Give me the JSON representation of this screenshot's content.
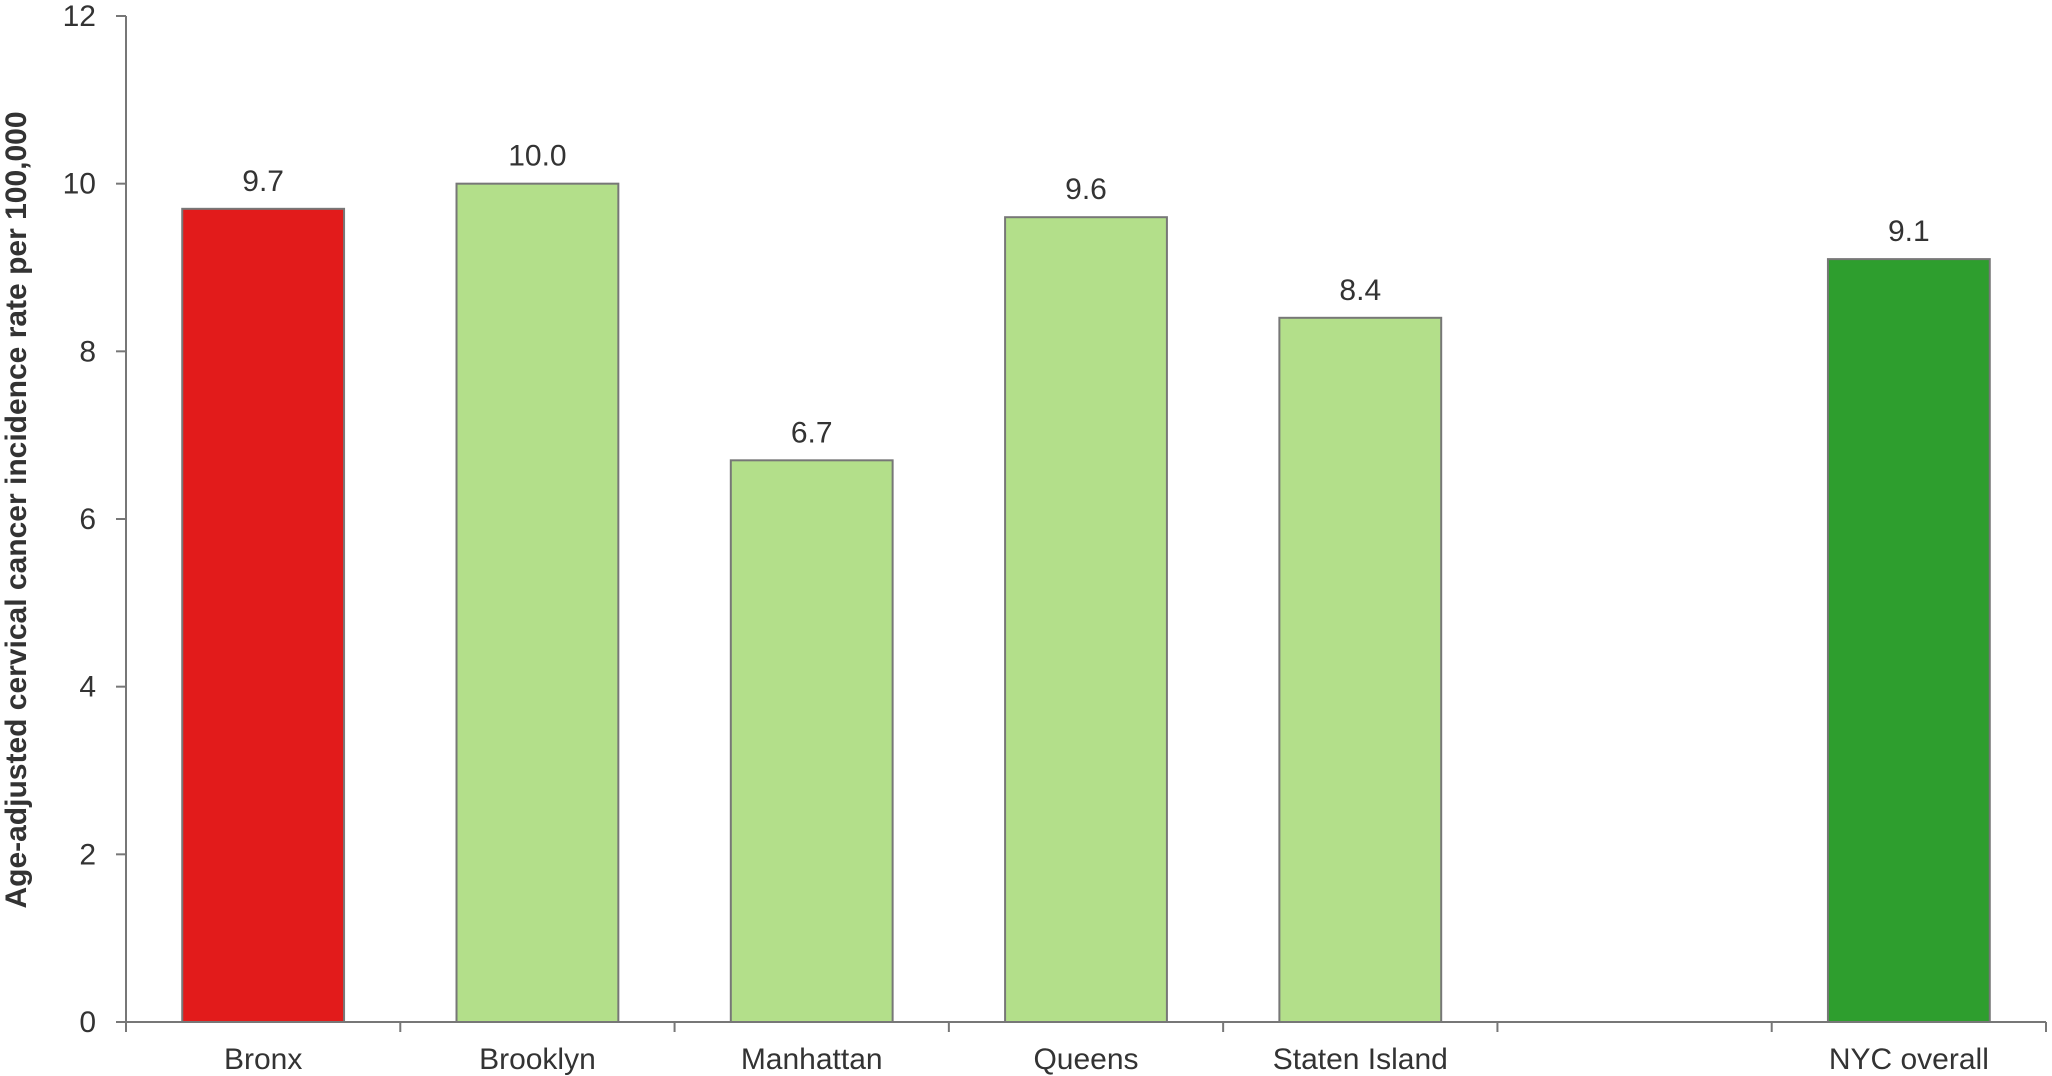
{
  "chart_data": {
    "type": "bar",
    "title": "",
    "xlabel": "",
    "ylabel": "Age-adjusted cervical cancer incidence rate per 100,000",
    "ylim": [
      0,
      12
    ],
    "yticks": [
      0,
      2,
      4,
      6,
      8,
      10,
      12
    ],
    "grid": false,
    "categories": [
      "Bronx",
      "Brooklyn",
      "Manhattan",
      "Queens",
      "Staten Island",
      "",
      "NYC overall"
    ],
    "values": [
      9.7,
      10.0,
      6.7,
      9.6,
      8.4,
      null,
      9.1
    ],
    "value_labels": [
      "9.7",
      "10.0",
      "6.7",
      "9.6",
      "8.4",
      "",
      "9.1"
    ],
    "bar_colors": [
      "#e21b1b",
      "#b3df8a",
      "#b3df8a",
      "#b3df8a",
      "#b3df8a",
      "",
      "#2e9e2e"
    ],
    "bar_edge_color": "#777777",
    "axis_color": "#777777",
    "text_color": "#333333"
  }
}
